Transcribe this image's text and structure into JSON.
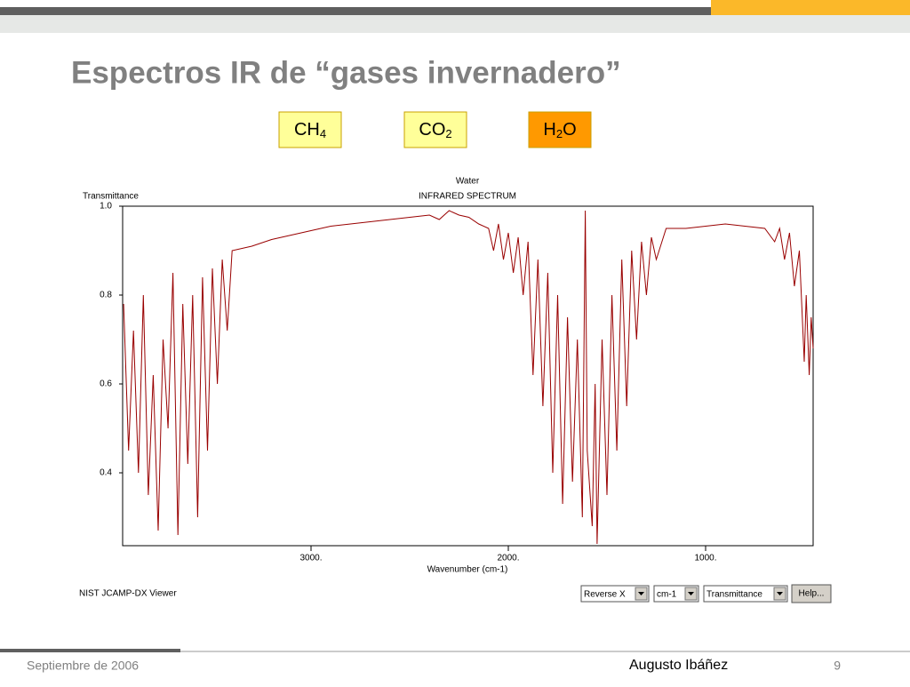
{
  "slide": {
    "title": "Espectros IR de “gases invernadero”",
    "buttons": [
      {
        "base": "CH",
        "sub": "4"
      },
      {
        "base": "CO",
        "sub": "2"
      },
      {
        "base": "H",
        "sub": "2",
        "tail": "O"
      }
    ],
    "viewer_name": "NIST JCAMP-DX Viewer",
    "controls": [
      "Reverse X",
      "cm-1",
      "Transmittance"
    ],
    "help": "Help...",
    "footer_date": "Septiembre de 2006",
    "footer_author": "Augusto Ibáñez",
    "page": "9"
  },
  "chart_data": {
    "type": "line",
    "title": "Water",
    "subtitle": "INFRARED SPECTRUM",
    "y_label": "Transmittance",
    "x_label": "Wavenumber (cm-1)",
    "color": "#990000",
    "x": [
      3950,
      3925,
      3900,
      3875,
      3850,
      3825,
      3800,
      3775,
      3750,
      3725,
      3700,
      3675,
      3650,
      3625,
      3600,
      3575,
      3550,
      3525,
      3500,
      3475,
      3450,
      3425,
      3400,
      3300,
      3200,
      3100,
      3000,
      2900,
      2800,
      2700,
      2600,
      2500,
      2400,
      2350,
      2300,
      2250,
      2200,
      2150,
      2100,
      2075,
      2050,
      2025,
      2000,
      1975,
      1950,
      1925,
      1900,
      1875,
      1850,
      1825,
      1800,
      1775,
      1750,
      1725,
      1700,
      1675,
      1650,
      1625,
      1610,
      1600,
      1575,
      1560,
      1550,
      1525,
      1500,
      1475,
      1450,
      1425,
      1400,
      1375,
      1350,
      1325,
      1300,
      1275,
      1250,
      1200,
      1100,
      1000,
      900,
      800,
      700,
      650,
      625,
      600,
      575,
      550,
      525,
      500,
      490,
      475,
      465,
      455
    ],
    "values": [
      0.78,
      0.45,
      0.72,
      0.4,
      0.8,
      0.35,
      0.62,
      0.27,
      0.7,
      0.5,
      0.85,
      0.26,
      0.78,
      0.42,
      0.8,
      0.3,
      0.84,
      0.45,
      0.86,
      0.6,
      0.88,
      0.72,
      0.9,
      0.91,
      0.925,
      0.935,
      0.945,
      0.955,
      0.96,
      0.965,
      0.97,
      0.975,
      0.98,
      0.97,
      0.99,
      0.98,
      0.975,
      0.96,
      0.95,
      0.9,
      0.96,
      0.88,
      0.94,
      0.85,
      0.93,
      0.8,
      0.92,
      0.62,
      0.88,
      0.55,
      0.85,
      0.4,
      0.8,
      0.33,
      0.75,
      0.38,
      0.7,
      0.3,
      0.99,
      0.45,
      0.28,
      0.6,
      0.24,
      0.7,
      0.35,
      0.8,
      0.45,
      0.88,
      0.55,
      0.9,
      0.7,
      0.92,
      0.8,
      0.93,
      0.88,
      0.95,
      0.95,
      0.955,
      0.96,
      0.955,
      0.95,
      0.92,
      0.95,
      0.88,
      0.94,
      0.82,
      0.9,
      0.65,
      0.8,
      0.62,
      0.75,
      0.68
    ],
    "xlim": [
      3955,
      455
    ],
    "ylim": [
      0.236,
      1.0
    ],
    "xticks": [
      {
        "value": 3000,
        "label": "3000."
      },
      {
        "value": 2000,
        "label": "2000."
      },
      {
        "value": 1000,
        "label": "1000."
      }
    ],
    "yticks": [
      {
        "value": 1,
        "label": "1.0"
      },
      0.8,
      0.6,
      0.4
    ]
  }
}
